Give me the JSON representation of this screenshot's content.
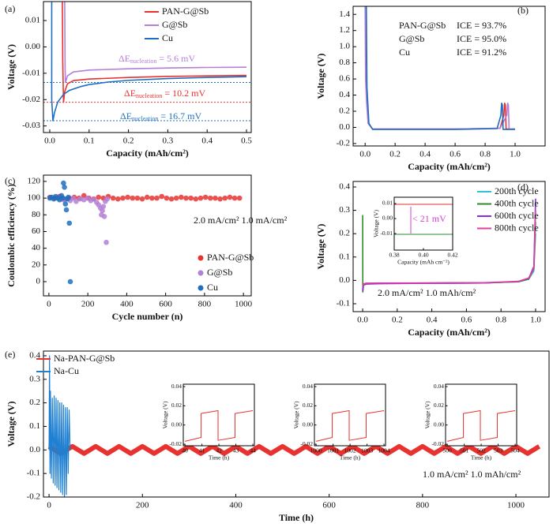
{
  "chart_data": [
    {
      "type": "line",
      "panel_label": "(a)",
      "x_label": "Capacity (mAh/cm²)",
      "y_label": "Voltage (V)",
      "xlim": [
        -0.016,
        0.512
      ],
      "ylim": [
        -0.0325,
        0.0172
      ],
      "xticks": [
        {
          "value": 0,
          "label": "0.0"
        },
        0.1,
        0.2,
        0.3,
        0.4,
        0.5
      ],
      "yticks": [
        -0.03,
        -0.02,
        -0.01,
        {
          "value": 0,
          "label": "0.00"
        },
        0.01
      ],
      "series": [
        {
          "name": "PAN-G@Sb",
          "color": "#e8322f",
          "x": [
            0.032,
            0.033,
            0.035,
            0.038,
            0.045,
            0.06,
            0.1,
            0.2,
            0.3,
            0.4,
            0.5
          ],
          "values": [
            0.017,
            -0.005,
            -0.021,
            -0.017,
            -0.014,
            -0.0128,
            -0.0122,
            -0.0116,
            -0.0112,
            -0.011,
            -0.0108
          ]
        },
        {
          "name": "G@Sb",
          "color": "#b47fd6",
          "x": [
            0.038,
            0.039,
            0.04,
            0.045,
            0.06,
            0.1,
            0.2,
            0.3,
            0.4,
            0.5
          ],
          "values": [
            0.017,
            -0.008,
            -0.0135,
            -0.011,
            -0.0095,
            -0.0088,
            -0.0083,
            -0.008,
            -0.0078,
            -0.0077
          ]
        },
        {
          "name": "Cu",
          "color": "#1f6fc0",
          "x": [
            0.005,
            0.005,
            0.008,
            0.012,
            0.02,
            0.035,
            0.05,
            0.08,
            0.1,
            0.15,
            0.2,
            0.3,
            0.4,
            0.5
          ],
          "values": [
            0.017,
            -0.02,
            -0.028,
            -0.025,
            -0.021,
            -0.018,
            -0.0165,
            -0.015,
            -0.0143,
            -0.0133,
            -0.0127,
            -0.012,
            -0.0116,
            -0.0113
          ]
        }
      ],
      "hlines": [
        {
          "value": -0.0135,
          "color": "#1f6fc0"
        },
        {
          "value": -0.021,
          "color": "#e8322f"
        },
        {
          "value": -0.028,
          "color": "#1f6fc0"
        }
      ],
      "annotations": [
        {
          "text": "ΔE",
          "sub": "nucleation",
          "value_text": " = 5.6 mV",
          "color": "#b47fd6"
        },
        {
          "text": "ΔE",
          "sub": "nucleation",
          "value_text": " = 10.2 mV",
          "color": "#e8322f"
        },
        {
          "text": "ΔE",
          "sub": "nucleation",
          "value_text": " = 16.7 mV",
          "color": "#1f6fc0"
        }
      ]
    },
    {
      "type": "line",
      "panel_label": "(b)",
      "x_label": "Capacity (mAh/cm²)",
      "y_label": "Voltage (V)",
      "xlim": [
        -0.08,
        1.2
      ],
      "ylim": [
        -0.23,
        1.5
      ],
      "xticks": [
        {
          "value": 0,
          "label": "0.0"
        },
        0.2,
        0.4,
        0.6,
        0.8,
        {
          "value": 1,
          "label": "1.0"
        }
      ],
      "yticks": [
        -0.2,
        {
          "value": 0,
          "label": "0.0"
        },
        0.2,
        0.4,
        0.6,
        0.8,
        {
          "value": 1,
          "label": "1.0"
        },
        1.2,
        1.4
      ],
      "series": [
        {
          "name": "PAN-G@Sb",
          "ice": "ICE = 93.7%",
          "color": "#e8322f",
          "x": [
            0.005,
            0.008,
            0.012,
            0.02,
            0.05,
            0.3,
            0.6,
            0.9,
            0.925,
            0.93,
            0.935,
            0.94,
            1.0
          ],
          "values": [
            1.5,
            0.7,
            0.4,
            0.05,
            -0.02,
            -0.02,
            -0.02,
            -0.01,
            0.15,
            0.3,
            0.28,
            -0.02,
            -0.02
          ]
        },
        {
          "name": "G@Sb",
          "ice": "ICE = 95.0%",
          "color": "#b47fd6",
          "x": [
            0.0,
            0.003,
            0.01,
            0.02,
            0.05,
            0.3,
            0.6,
            0.9,
            0.945,
            0.95,
            0.955,
            0.96,
            1.0
          ],
          "values": [
            1.5,
            0.6,
            0.3,
            0.05,
            -0.02,
            -0.02,
            -0.02,
            -0.01,
            0.15,
            0.3,
            0.28,
            -0.02,
            -0.02
          ]
        },
        {
          "name": "Cu",
          "ice": "ICE = 91.2%",
          "color": "#1f6fc0",
          "x": [
            0.008,
            0.012,
            0.018,
            0.025,
            0.05,
            0.3,
            0.6,
            0.88,
            0.905,
            0.91,
            0.915,
            0.92,
            1.0
          ],
          "values": [
            1.5,
            0.5,
            0.3,
            0.05,
            -0.025,
            -0.025,
            -0.025,
            -0.015,
            0.15,
            0.3,
            0.28,
            -0.025,
            -0.025
          ]
        }
      ]
    },
    {
      "type": "scatter",
      "panel_label": "(c)",
      "x_label": "Cycle number (n)",
      "y_label": "Coulombic efficiency (%)",
      "xlim": [
        -28,
        1040
      ],
      "ylim": [
        -17,
        127.5
      ],
      "xticks": [
        0,
        200,
        400,
        600,
        800,
        1000
      ],
      "yticks": [
        0,
        20,
        40,
        60,
        80,
        100,
        120
      ],
      "series": [
        {
          "name": "PAN-G@Sb",
          "color": "#e8322f",
          "x": [
            5,
            30,
            55,
            80,
            105,
            130,
            155,
            180,
            205,
            230,
            255,
            280,
            305,
            330,
            355,
            380,
            405,
            430,
            455,
            480,
            505,
            530,
            555,
            580,
            605,
            630,
            655,
            680,
            705,
            730,
            755,
            780,
            805,
            830,
            855,
            880,
            905,
            930,
            955,
            980
          ],
          "values": [
            101,
            100,
            102,
            99,
            100,
            101,
            100,
            103,
            100,
            99,
            101,
            100,
            102,
            100,
            99,
            100,
            101,
            100,
            100,
            99,
            101,
            100,
            100,
            102,
            100,
            99,
            100,
            101,
            100,
            100,
            99,
            100,
            101,
            100,
            100,
            99,
            100,
            101,
            100,
            100
          ]
        },
        {
          "name": "G@Sb",
          "color": "#b47fd6",
          "x": [
            60,
            75,
            90,
            110,
            125,
            140,
            160,
            180,
            200,
            215,
            230,
            245,
            255,
            265,
            270,
            275,
            280,
            285,
            290,
            295,
            300
          ],
          "values": [
            100,
            98,
            99,
            97,
            100,
            96,
            99,
            98,
            100,
            97,
            99,
            95,
            92,
            88,
            80,
            85,
            90,
            78,
            96,
            47,
            99
          ]
        },
        {
          "name": "Cu",
          "color": "#1f6fc0",
          "x": [
            5,
            15,
            25,
            35,
            45,
            55,
            65,
            72,
            75,
            80,
            85,
            90,
            95,
            100,
            105,
            110
          ],
          "values": [
            100,
            101,
            99,
            102,
            100,
            98,
            103,
            100,
            118,
            113,
            93,
            86,
            99,
            101,
            70,
            0
          ]
        }
      ],
      "annotations": [
        {
          "text": "2.0 mA/cm² 1.0 mA/cm²",
          "color": "#111111"
        }
      ]
    },
    {
      "type": "line",
      "panel_label": "(d)",
      "x_label": "Capacity (mAh/cm²)",
      "y_label": "Voltage (V)",
      "xlim": [
        -0.055,
        1.055
      ],
      "ylim": [
        -0.1338,
        0.4236
      ],
      "xticks": [
        {
          "value": 0,
          "label": "0.0"
        },
        0.2,
        0.4,
        0.6,
        0.8,
        {
          "value": 1,
          "label": "1.0"
        }
      ],
      "yticks": [
        -0.1,
        {
          "value": 0,
          "label": "0.0"
        },
        0.1,
        0.2,
        0.3,
        0.4
      ],
      "series": [
        {
          "name": "200th cycle",
          "color": "#2ec4d6",
          "x": [
            0,
            0.005,
            0.02,
            0.1,
            0.3,
            0.5,
            0.7,
            0.9,
            0.96,
            0.99,
            1.0
          ],
          "values": [
            -0.04,
            -0.02,
            -0.015,
            -0.013,
            -0.012,
            -0.012,
            -0.011,
            -0.006,
            0.005,
            0.04,
            0.2
          ]
        },
        {
          "name": "400th cycle",
          "color": "#2e8b2e",
          "x": [
            0,
            0.001,
            0.005,
            0.02,
            0.1,
            0.3,
            0.5,
            0.7,
            0.9,
            0.96,
            0.99,
            1.0
          ],
          "values": [
            0.28,
            -0.05,
            -0.02,
            -0.015,
            -0.013,
            -0.012,
            -0.012,
            -0.011,
            -0.006,
            0.005,
            0.05,
            0.25
          ]
        },
        {
          "name": "600th cycle",
          "color": "#8a2be2",
          "x": [
            0,
            0.005,
            0.02,
            0.1,
            0.3,
            0.5,
            0.7,
            0.9,
            0.96,
            0.99,
            1.0
          ],
          "values": [
            -0.045,
            -0.02,
            -0.016,
            -0.014,
            -0.013,
            -0.012,
            -0.011,
            -0.005,
            0.008,
            0.06,
            0.35
          ]
        },
        {
          "name": "800th cycle",
          "color": "#e0409a",
          "x": [
            0,
            0.005,
            0.02,
            0.1,
            0.3,
            0.5,
            0.7,
            0.9,
            0.96,
            0.99,
            1.0
          ],
          "values": [
            -0.03,
            -0.015,
            -0.012,
            -0.011,
            -0.011,
            -0.01,
            -0.01,
            -0.004,
            0.01,
            0.05,
            0.3
          ]
        }
      ],
      "annotations": [
        {
          "text": "2.0 mA/cm² 1.0 mAh/cm²",
          "color": "#111111"
        }
      ]
    },
    {
      "type": "line",
      "x_label": "Capacity (mAh cm⁻²)",
      "y_label": "Voltage (V)",
      "xlim": [
        0.38,
        0.42
      ],
      "ylim": [
        -0.021,
        0.0142
      ],
      "xticks": [
        0.38,
        {
          "value": 0.4,
          "label": "0.40"
        },
        0.42
      ],
      "yticks": [
        -0.01,
        {
          "value": 0,
          "label": "0.00"
        },
        0.01
      ],
      "series": [
        {
          "color": "#e8322f",
          "x": [
            0.38,
            0.42
          ],
          "values": [
            0.0095,
            0.0095
          ]
        },
        {
          "color": "#2e8b2e",
          "x": [
            0.38,
            0.42
          ],
          "values": [
            -0.0105,
            -0.0105
          ]
        }
      ],
      "annotations": [
        {
          "text": "< 21 mV",
          "color": "#d63fd6"
        }
      ]
    },
    {
      "type": "line",
      "panel_label": "(e)",
      "x_label": "Time (h)",
      "y_label": "Voltage (V)",
      "xlim": [
        -12,
        1071
      ],
      "ylim": [
        -0.2,
        0.42
      ],
      "xticks": [
        0,
        200,
        400,
        600,
        800,
        1000
      ],
      "yticks": [
        -0.2,
        -0.1,
        {
          "value": 0,
          "label": "0.0"
        },
        0.1,
        0.2,
        0.3,
        0.4
      ],
      "series": [
        {
          "name": "Na-PAN-G@Sb",
          "color": "#e8322f",
          "x": [
            0,
            25,
            50,
            75,
            100,
            125,
            150,
            175,
            200,
            225,
            250,
            275,
            300,
            325,
            350,
            375,
            400,
            425,
            450,
            475,
            500,
            525,
            550,
            575,
            600,
            625,
            650,
            675,
            700,
            725,
            750,
            775,
            800,
            825,
            850,
            875,
            900,
            925,
            950,
            975,
            1000,
            1025,
            1050
          ],
          "values": [
            0.015,
            -0.015,
            0.015,
            -0.015,
            0.015,
            -0.015,
            0.015,
            -0.015,
            0.015,
            -0.015,
            0.015,
            -0.015,
            0.015,
            -0.015,
            0.015,
            -0.015,
            0.015,
            -0.015,
            0.015,
            -0.015,
            0.015,
            -0.015,
            0.015,
            -0.015,
            0.015,
            -0.015,
            0.015,
            -0.015,
            0.015,
            -0.015,
            0.015,
            -0.015,
            0.015,
            -0.015,
            0.015,
            -0.015,
            0.015,
            -0.015,
            0.015,
            -0.015,
            0.015,
            -0.015,
            0.015
          ]
        },
        {
          "name": "Na-Cu",
          "color": "#1f7fd0",
          "x": [
            0,
            1,
            2,
            3,
            5,
            7,
            9,
            11,
            13,
            15,
            17,
            19,
            21,
            23,
            25,
            27,
            29,
            31,
            33,
            35,
            37,
            39,
            41,
            43,
            45
          ],
          "values": [
            0.0,
            0.4,
            -0.1,
            0.25,
            -0.12,
            0.22,
            -0.14,
            0.23,
            -0.15,
            0.22,
            -0.16,
            0.21,
            -0.17,
            0.2,
            -0.18,
            0.2,
            -0.19,
            0.19,
            -0.2,
            0.18,
            -0.19,
            0.18,
            -0.1,
            0.17,
            0.0
          ]
        }
      ],
      "annotations": [
        {
          "text": "1.0 mA/cm² 1.0 mAh/cm²",
          "color": "#111111"
        }
      ]
    },
    {
      "type": "line",
      "x_label": "Time (h)",
      "y_label": "Voltage (V)",
      "xlim": [
        39.9,
        44.09
      ],
      "ylim": [
        -0.0216,
        0.0425
      ],
      "xticks": [
        40,
        41,
        42,
        43,
        44
      ],
      "yticks": [
        -0.02,
        {
          "value": 0,
          "label": "0.00"
        },
        0.02,
        0.04
      ],
      "series": [
        {
          "color": "#e8322f",
          "x": [
            40,
            40.95,
            40.95,
            41.95,
            41.95,
            42.95,
            42.95,
            44
          ],
          "values": [
            -0.017,
            -0.013,
            0.012,
            0.015,
            -0.016,
            -0.013,
            0.012,
            0.015
          ]
        }
      ]
    },
    {
      "type": "line",
      "x_label": "Time (h)",
      "y_label": "Voltage (V)",
      "xlim": [
        999.9,
        1004.09
      ],
      "ylim": [
        -0.0216,
        0.0425
      ],
      "xticks": [
        1000,
        1001,
        1002,
        1003,
        1004
      ],
      "yticks": [
        -0.02,
        {
          "value": 0,
          "label": "0.00"
        },
        0.02,
        0.04
      ],
      "series": [
        {
          "color": "#e8322f",
          "x": [
            1000,
            1000.95,
            1000.95,
            1001.95,
            1001.95,
            1002.95,
            1002.95,
            1004
          ],
          "values": [
            -0.017,
            -0.013,
            0.012,
            0.015,
            -0.016,
            -0.013,
            0.012,
            0.015
          ]
        }
      ]
    },
    {
      "type": "line",
      "x_label": "Time (h)",
      "y_label": "Voltage (V)",
      "xlim": [
        499.9,
        504.09
      ],
      "ylim": [
        -0.0216,
        0.0425
      ],
      "xticks": [
        500,
        501,
        502,
        503,
        504
      ],
      "yticks": [
        -0.02,
        {
          "value": 0,
          "label": "0.00"
        },
        0.02,
        0.04
      ],
      "series": [
        {
          "color": "#e8322f",
          "x": [
            500,
            500.95,
            500.95,
            501.95,
            501.95,
            502.95,
            502.95,
            504
          ],
          "values": [
            -0.017,
            -0.013,
            0.012,
            0.015,
            -0.016,
            -0.013,
            0.012,
            0.015
          ]
        }
      ]
    }
  ]
}
